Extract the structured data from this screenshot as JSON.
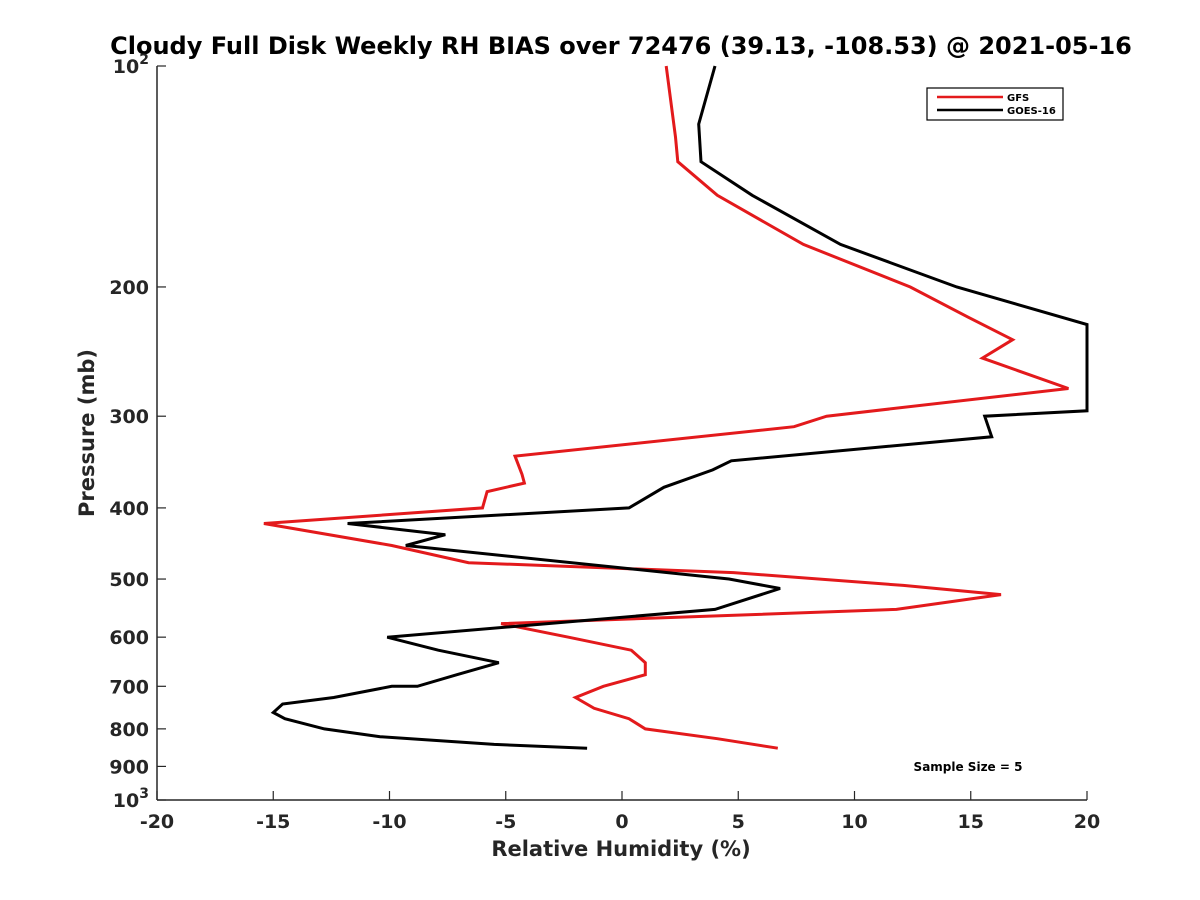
{
  "chart_data": {
    "type": "line",
    "title": "Cloudy Full Disk Weekly RH BIAS over 72476 (39.13, -108.53) @ 2021-05-16",
    "xlabel": "Relative Humidity (%)",
    "ylabel": "Pressure (mb)",
    "xlim": [
      -20,
      20
    ],
    "ylim": [
      100,
      1000
    ],
    "yscale": "log",
    "y_reversed": true,
    "x_ticks": [
      -20,
      -15,
      -10,
      -5,
      0,
      5,
      10,
      15,
      20
    ],
    "x_tick_labels": [
      "-20",
      "-15",
      "-10",
      "-5",
      "0",
      "5",
      "10",
      "15",
      "20"
    ],
    "y_ticks": [
      100,
      200,
      300,
      400,
      500,
      600,
      700,
      800,
      900,
      1000
    ],
    "y_tick_labels": [
      {
        "base": "10",
        "exp": "2"
      },
      {
        "base": "200",
        "exp": ""
      },
      {
        "base": "300",
        "exp": ""
      },
      {
        "base": "400",
        "exp": ""
      },
      {
        "base": "500",
        "exp": ""
      },
      {
        "base": "600",
        "exp": ""
      },
      {
        "base": "700",
        "exp": ""
      },
      {
        "base": "800",
        "exp": ""
      },
      {
        "base": "900",
        "exp": ""
      },
      {
        "base": "10",
        "exp": "3"
      }
    ],
    "legend_position": "top-right",
    "grid": false,
    "annotation": "Sample Size = 5",
    "series": [
      {
        "name": "GFS",
        "color": "#e31a1c",
        "points": [
          [
            1.9,
            100
          ],
          [
            2.3,
            125
          ],
          [
            2.4,
            135
          ],
          [
            4.1,
            150
          ],
          [
            7.8,
            175
          ],
          [
            12.4,
            200
          ],
          [
            14.9,
            220
          ],
          [
            16.8,
            236
          ],
          [
            15.5,
            250
          ],
          [
            19.2,
            275
          ],
          [
            8.8,
            300
          ],
          [
            7.4,
            310
          ],
          [
            -4.6,
            340
          ],
          [
            -4.3,
            360
          ],
          [
            -4.2,
            370
          ],
          [
            -5.8,
            380
          ],
          [
            -6.0,
            400
          ],
          [
            -15.4,
            420
          ],
          [
            -9.9,
            450
          ],
          [
            -6.6,
            475
          ],
          [
            4.8,
            490
          ],
          [
            12.1,
            510
          ],
          [
            16.3,
            525
          ],
          [
            11.8,
            550
          ],
          [
            -5.2,
            575
          ],
          [
            -2.3,
            600
          ],
          [
            0.4,
            625
          ],
          [
            1.0,
            650
          ],
          [
            1.0,
            675
          ],
          [
            -0.8,
            700
          ],
          [
            -2.0,
            725
          ],
          [
            -1.2,
            750
          ],
          [
            0.3,
            775
          ],
          [
            1.0,
            800
          ],
          [
            4.1,
            825
          ],
          [
            6.7,
            850
          ]
        ]
      },
      {
        "name": "GOES-16",
        "color": "#000000",
        "points": [
          [
            4.0,
            100
          ],
          [
            3.3,
            120
          ],
          [
            3.4,
            135
          ],
          [
            5.6,
            150
          ],
          [
            9.4,
            175
          ],
          [
            14.4,
            200
          ],
          [
            20.0,
            225
          ],
          [
            20.0,
            295
          ],
          [
            15.6,
            300
          ],
          [
            15.9,
            320
          ],
          [
            4.7,
            345
          ],
          [
            3.9,
            355
          ],
          [
            1.8,
            375
          ],
          [
            0.3,
            400
          ],
          [
            -11.8,
            420
          ],
          [
            -7.6,
            435
          ],
          [
            -9.3,
            450
          ],
          [
            4.6,
            500
          ],
          [
            6.8,
            515
          ],
          [
            4.0,
            550
          ],
          [
            -10.1,
            600
          ],
          [
            -7.9,
            625
          ],
          [
            -5.3,
            650
          ],
          [
            -7.1,
            675
          ],
          [
            -8.8,
            700
          ],
          [
            -9.9,
            700
          ],
          [
            -12.4,
            725
          ],
          [
            -14.6,
            740
          ],
          [
            -15.0,
            760
          ],
          [
            -14.5,
            775
          ],
          [
            -12.8,
            800
          ],
          [
            -10.4,
            820
          ],
          [
            -5.5,
            840
          ],
          [
            -1.5,
            850
          ]
        ]
      }
    ]
  }
}
